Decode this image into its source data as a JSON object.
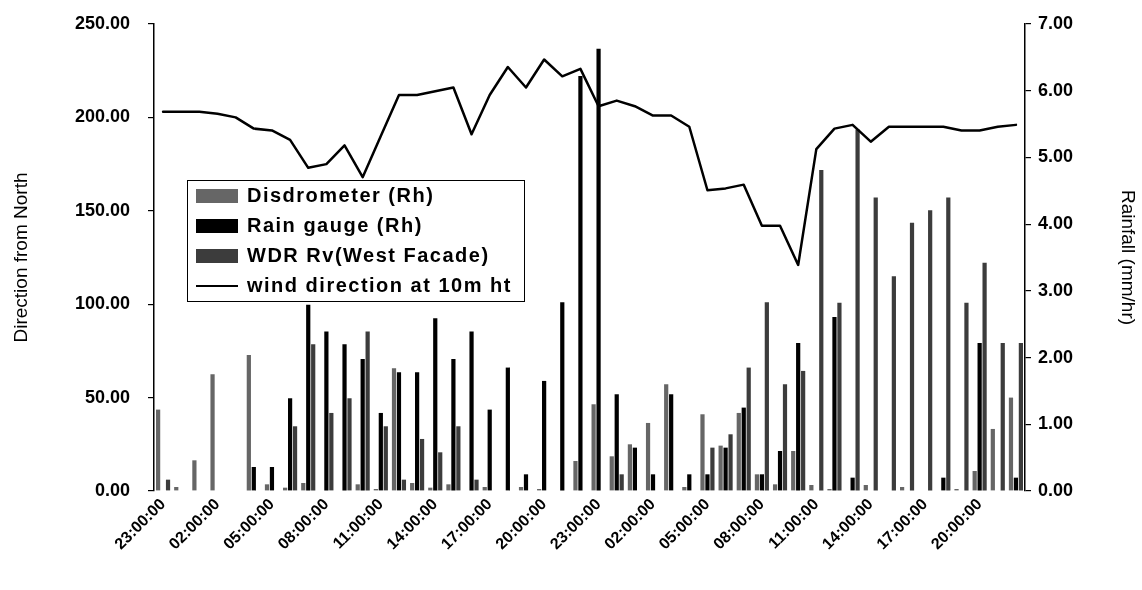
{
  "chart_data": {
    "type": "bar",
    "ylabel": "Direction from North",
    "y2label": "Rainfall (mm/hr)",
    "categories": [
      "23:00:00",
      null,
      null,
      "02:00:00",
      null,
      null,
      "05:00:00",
      null,
      null,
      "08:00:00",
      null,
      null,
      "11:00:00",
      null,
      null,
      "14:00:00",
      null,
      null,
      "17:00:00",
      null,
      null,
      "20:00:00",
      null,
      null,
      "23:00:00",
      null,
      null,
      "02:00:00",
      null,
      null,
      "05:00:00",
      null,
      null,
      "08:00:00",
      null,
      null,
      "11:00:00",
      null,
      null,
      "14:00:00",
      null,
      null,
      "17:00:00",
      null,
      null,
      "20:00:00",
      null,
      null
    ],
    "series": [
      {
        "name": "Disdrometer (Rh)",
        "color": "#666666",
        "axis": "y2",
        "values": [
          1.22,
          0.06,
          0.46,
          1.75,
          null,
          2.04,
          0.1,
          0.05,
          0.12,
          null,
          null,
          0.1,
          0.03,
          1.84,
          0.12,
          0.05,
          0.1,
          null,
          0.06,
          null,
          0.06,
          0.03,
          null,
          0.45,
          1.3,
          0.52,
          0.7,
          1.02,
          1.6,
          0.06,
          1.15,
          0.68,
          1.17,
          0.25,
          0.1,
          0.6,
          0.09,
          0.03,
          null,
          0.09,
          null,
          0.06,
          null,
          null,
          0.03,
          0.3,
          0.93,
          1.4
        ]
      },
      {
        "name": "Rain gauge (Rh)",
        "color": "#000000",
        "axis": "y2",
        "values": [
          null,
          null,
          null,
          null,
          null,
          0.36,
          0.36,
          1.39,
          2.79,
          2.39,
          2.2,
          1.98,
          1.17,
          1.78,
          1.78,
          2.59,
          1.98,
          2.39,
          1.22,
          1.85,
          0.25,
          1.65,
          2.83,
          6.22,
          6.63,
          1.45,
          0.65,
          0.25,
          1.45,
          0.25,
          0.25,
          0.65,
          1.25,
          0.25,
          0.6,
          2.22,
          null,
          2.61,
          0.2,
          null,
          null,
          null,
          null,
          0.2,
          null,
          2.22,
          null,
          0.2
        ]
      },
      {
        "name": "WDR Rv(West Facade)",
        "color": "#3c3c3c",
        "axis": "y2",
        "values": [
          0.17,
          null,
          null,
          null,
          null,
          null,
          null,
          0.97,
          2.2,
          1.17,
          1.39,
          2.39,
          0.97,
          0.17,
          0.78,
          0.58,
          0.97,
          0.17,
          null,
          null,
          null,
          null,
          null,
          null,
          null,
          0.25,
          null,
          null,
          null,
          null,
          0.65,
          0.85,
          1.85,
          2.83,
          1.6,
          1.8,
          4.81,
          2.82,
          5.42,
          4.4,
          3.22,
          4.02,
          4.21,
          4.4,
          2.82,
          3.42,
          2.22,
          2.22
        ]
      },
      {
        "name": "wind direction at 10m ht",
        "type": "line",
        "color": "#000000",
        "values": [
          203,
          203,
          203,
          202,
          200,
          194,
          193,
          188,
          173,
          175,
          185,
          168,
          190,
          212,
          212,
          214,
          216,
          191,
          212,
          227,
          216,
          231,
          222,
          226,
          206,
          209,
          206,
          201,
          201,
          195,
          161,
          162,
          164,
          142,
          142,
          121,
          183,
          194,
          196,
          187,
          195,
          195,
          195,
          195,
          193,
          193,
          195,
          196
        ]
      }
    ],
    "ylim": [
      0,
      250
    ],
    "yticks": [
      {
        "value": 0,
        "label": "0.00"
      },
      {
        "value": 50,
        "label": "50.00"
      },
      {
        "value": 100,
        "label": "100.00"
      },
      {
        "value": 150,
        "label": "150.00"
      },
      {
        "value": 200,
        "label": "200.00"
      },
      {
        "value": 250,
        "label": "250.00"
      }
    ],
    "y2lim": [
      0,
      7
    ],
    "y2ticks": [
      {
        "value": 0,
        "label": "0.00"
      },
      {
        "value": 1,
        "label": "1.00"
      },
      {
        "value": 2,
        "label": "2.00"
      },
      {
        "value": 3,
        "label": "3.00"
      },
      {
        "value": 4,
        "label": "4.00"
      },
      {
        "value": 5,
        "label": "5.00"
      },
      {
        "value": 6,
        "label": "6.00"
      },
      {
        "value": 7,
        "label": "7.00"
      }
    ],
    "legend": "left"
  }
}
